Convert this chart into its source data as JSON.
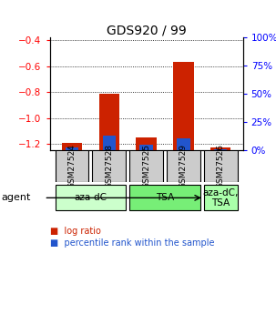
{
  "title": "GDS920 / 99",
  "samples": [
    "GSM27524",
    "GSM27528",
    "GSM27525",
    "GSM27529",
    "GSM27526"
  ],
  "log_ratios": [
    -1.19,
    -0.81,
    -1.15,
    -0.57,
    -1.225
  ],
  "percentile_ranks": [
    3,
    13,
    5,
    11,
    1
  ],
  "ylim_left": [
    -1.25,
    -0.38
  ],
  "ylim_right": [
    0,
    100
  ],
  "yticks_left": [
    -1.2,
    -1.0,
    -0.8,
    -0.6,
    -0.4
  ],
  "yticks_right": [
    0,
    25,
    50,
    75,
    100
  ],
  "bar_color_red": "#cc2200",
  "bar_color_blue": "#2255cc",
  "bar_width": 0.55,
  "blue_bar_width": 0.35,
  "agent_groups": [
    {
      "label": "aza-dC",
      "span": [
        0,
        2
      ],
      "color": "#ccffcc"
    },
    {
      "label": "TSA",
      "span": [
        2,
        4
      ],
      "color": "#77ee77"
    },
    {
      "label": "aza-dC,\nTSA",
      "span": [
        4,
        5
      ],
      "color": "#aaffaa"
    }
  ],
  "agent_label": "agent",
  "legend_items": [
    {
      "color": "#cc2200",
      "label": "log ratio"
    },
    {
      "color": "#2255cc",
      "label": "percentile rank within the sample"
    }
  ],
  "sample_box_color": "#cccccc",
  "title_fontsize": 10,
  "tick_fontsize": 7.5,
  "sample_fontsize": 6.5,
  "agent_fontsize": 7.5,
  "legend_fontsize": 7
}
